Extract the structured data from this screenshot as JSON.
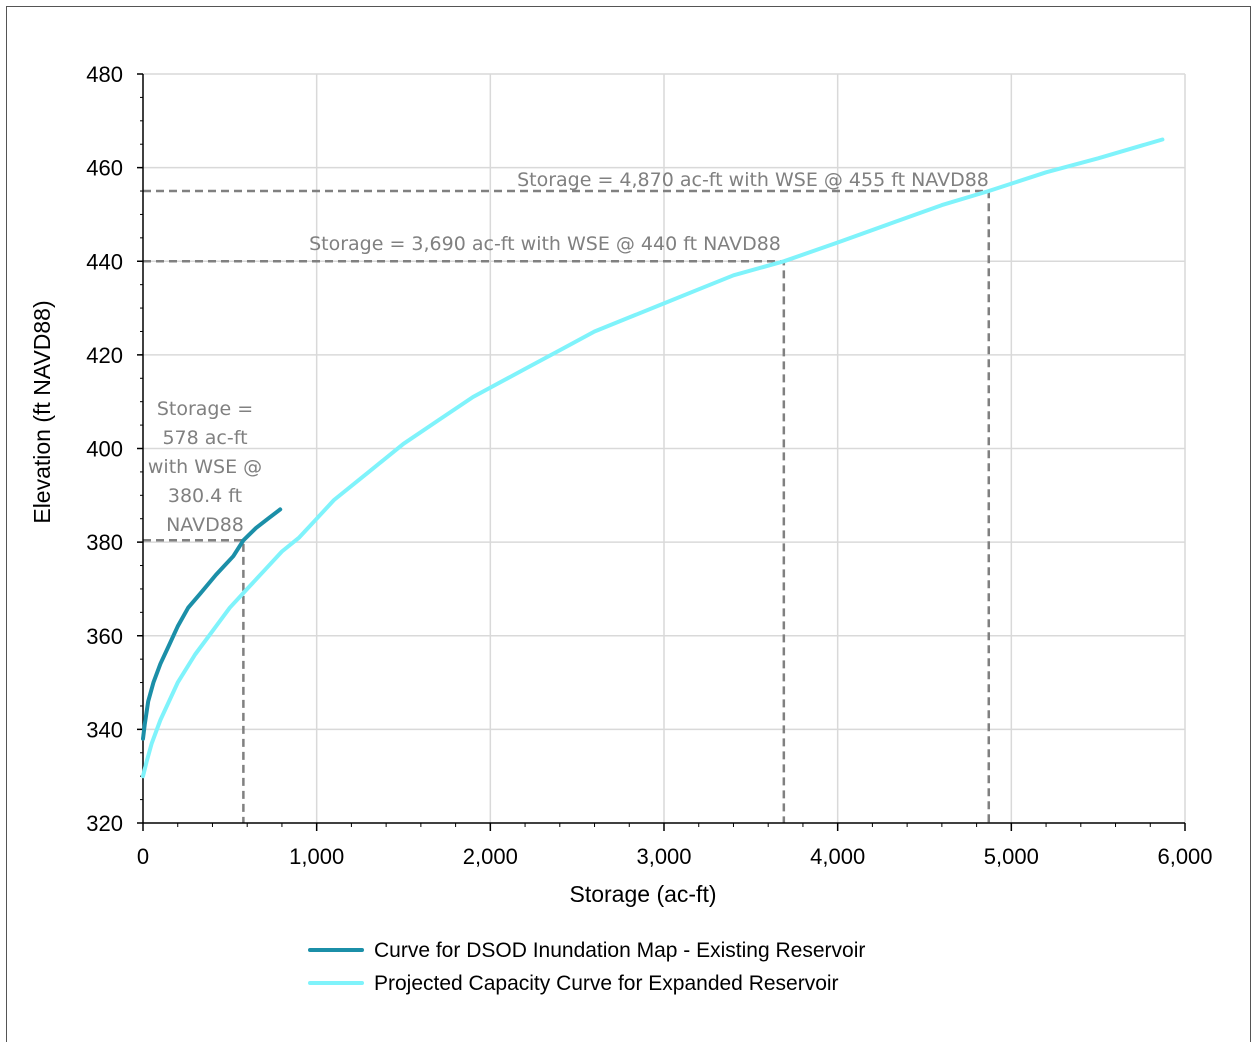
{
  "chart_data": {
    "type": "line",
    "xlabel": "Storage (ac-ft)",
    "ylabel": "Elevation (ft NAVD88)",
    "xlim": [
      0,
      6000
    ],
    "ylim": [
      320,
      480
    ],
    "x_ticks": [
      0,
      1000,
      2000,
      3000,
      4000,
      5000,
      6000
    ],
    "x_tick_labels": [
      "0",
      "1,000",
      "2,000",
      "3,000",
      "4,000",
      "5,000",
      "6,000"
    ],
    "y_ticks": [
      320,
      340,
      360,
      380,
      400,
      420,
      440,
      460,
      480
    ],
    "y_tick_labels": [
      "320",
      "340",
      "360",
      "380",
      "400",
      "420",
      "440",
      "460",
      "480"
    ],
    "grid": true,
    "legend_position": "bottom",
    "series": [
      {
        "name": "Curve for DSOD Inundation Map - Existing Reservoir",
        "color": "#1b8fa8",
        "x": [
          0,
          10,
          30,
          60,
          100,
          150,
          200,
          260,
          330,
          420,
          520,
          578,
          650,
          720,
          790
        ],
        "y": [
          338,
          341,
          346,
          350,
          354,
          358,
          362,
          366,
          369,
          373,
          377,
          380.4,
          383,
          385,
          387
        ]
      },
      {
        "name": "Projected Capacity Curve for Expanded Reservoir",
        "color": "#7ff3fb",
        "x": [
          0,
          20,
          50,
          100,
          200,
          300,
          400,
          500,
          600,
          700,
          800,
          900,
          1000,
          1100,
          1300,
          1500,
          1700,
          1900,
          2000,
          2200,
          2400,
          2600,
          2800,
          3000,
          3200,
          3400,
          3690,
          4000,
          4300,
          4600,
          4870,
          5200,
          5500,
          5870
        ],
        "y": [
          330,
          333,
          337,
          342,
          350,
          356,
          361,
          366,
          370,
          374,
          378,
          381,
          385,
          389,
          395,
          401,
          406,
          411,
          413,
          417,
          421,
          425,
          428,
          431,
          434,
          437,
          440,
          444,
          448,
          452,
          455,
          459,
          462,
          466
        ]
      }
    ],
    "reference_lines": [
      {
        "storage": 578,
        "elevation": 380.4
      },
      {
        "storage": 3690,
        "elevation": 440
      },
      {
        "storage": 4870,
        "elevation": 455
      }
    ],
    "annotations": {
      "a455": "Storage = 4,870 ac-ft with WSE @ 455 ft NAVD88",
      "a440": "Storage = 3,690 ac-ft with WSE @ 440 ft NAVD88",
      "a380_line1": "Storage =",
      "a380_line2": "578 ac-ft",
      "a380_line3": "with WSE @",
      "a380_line4": "380.4 ft",
      "a380_line5": "NAVD88"
    },
    "colors": {
      "grid": "#d9d9d9",
      "axis": "#000000",
      "reference": "#808080"
    }
  }
}
